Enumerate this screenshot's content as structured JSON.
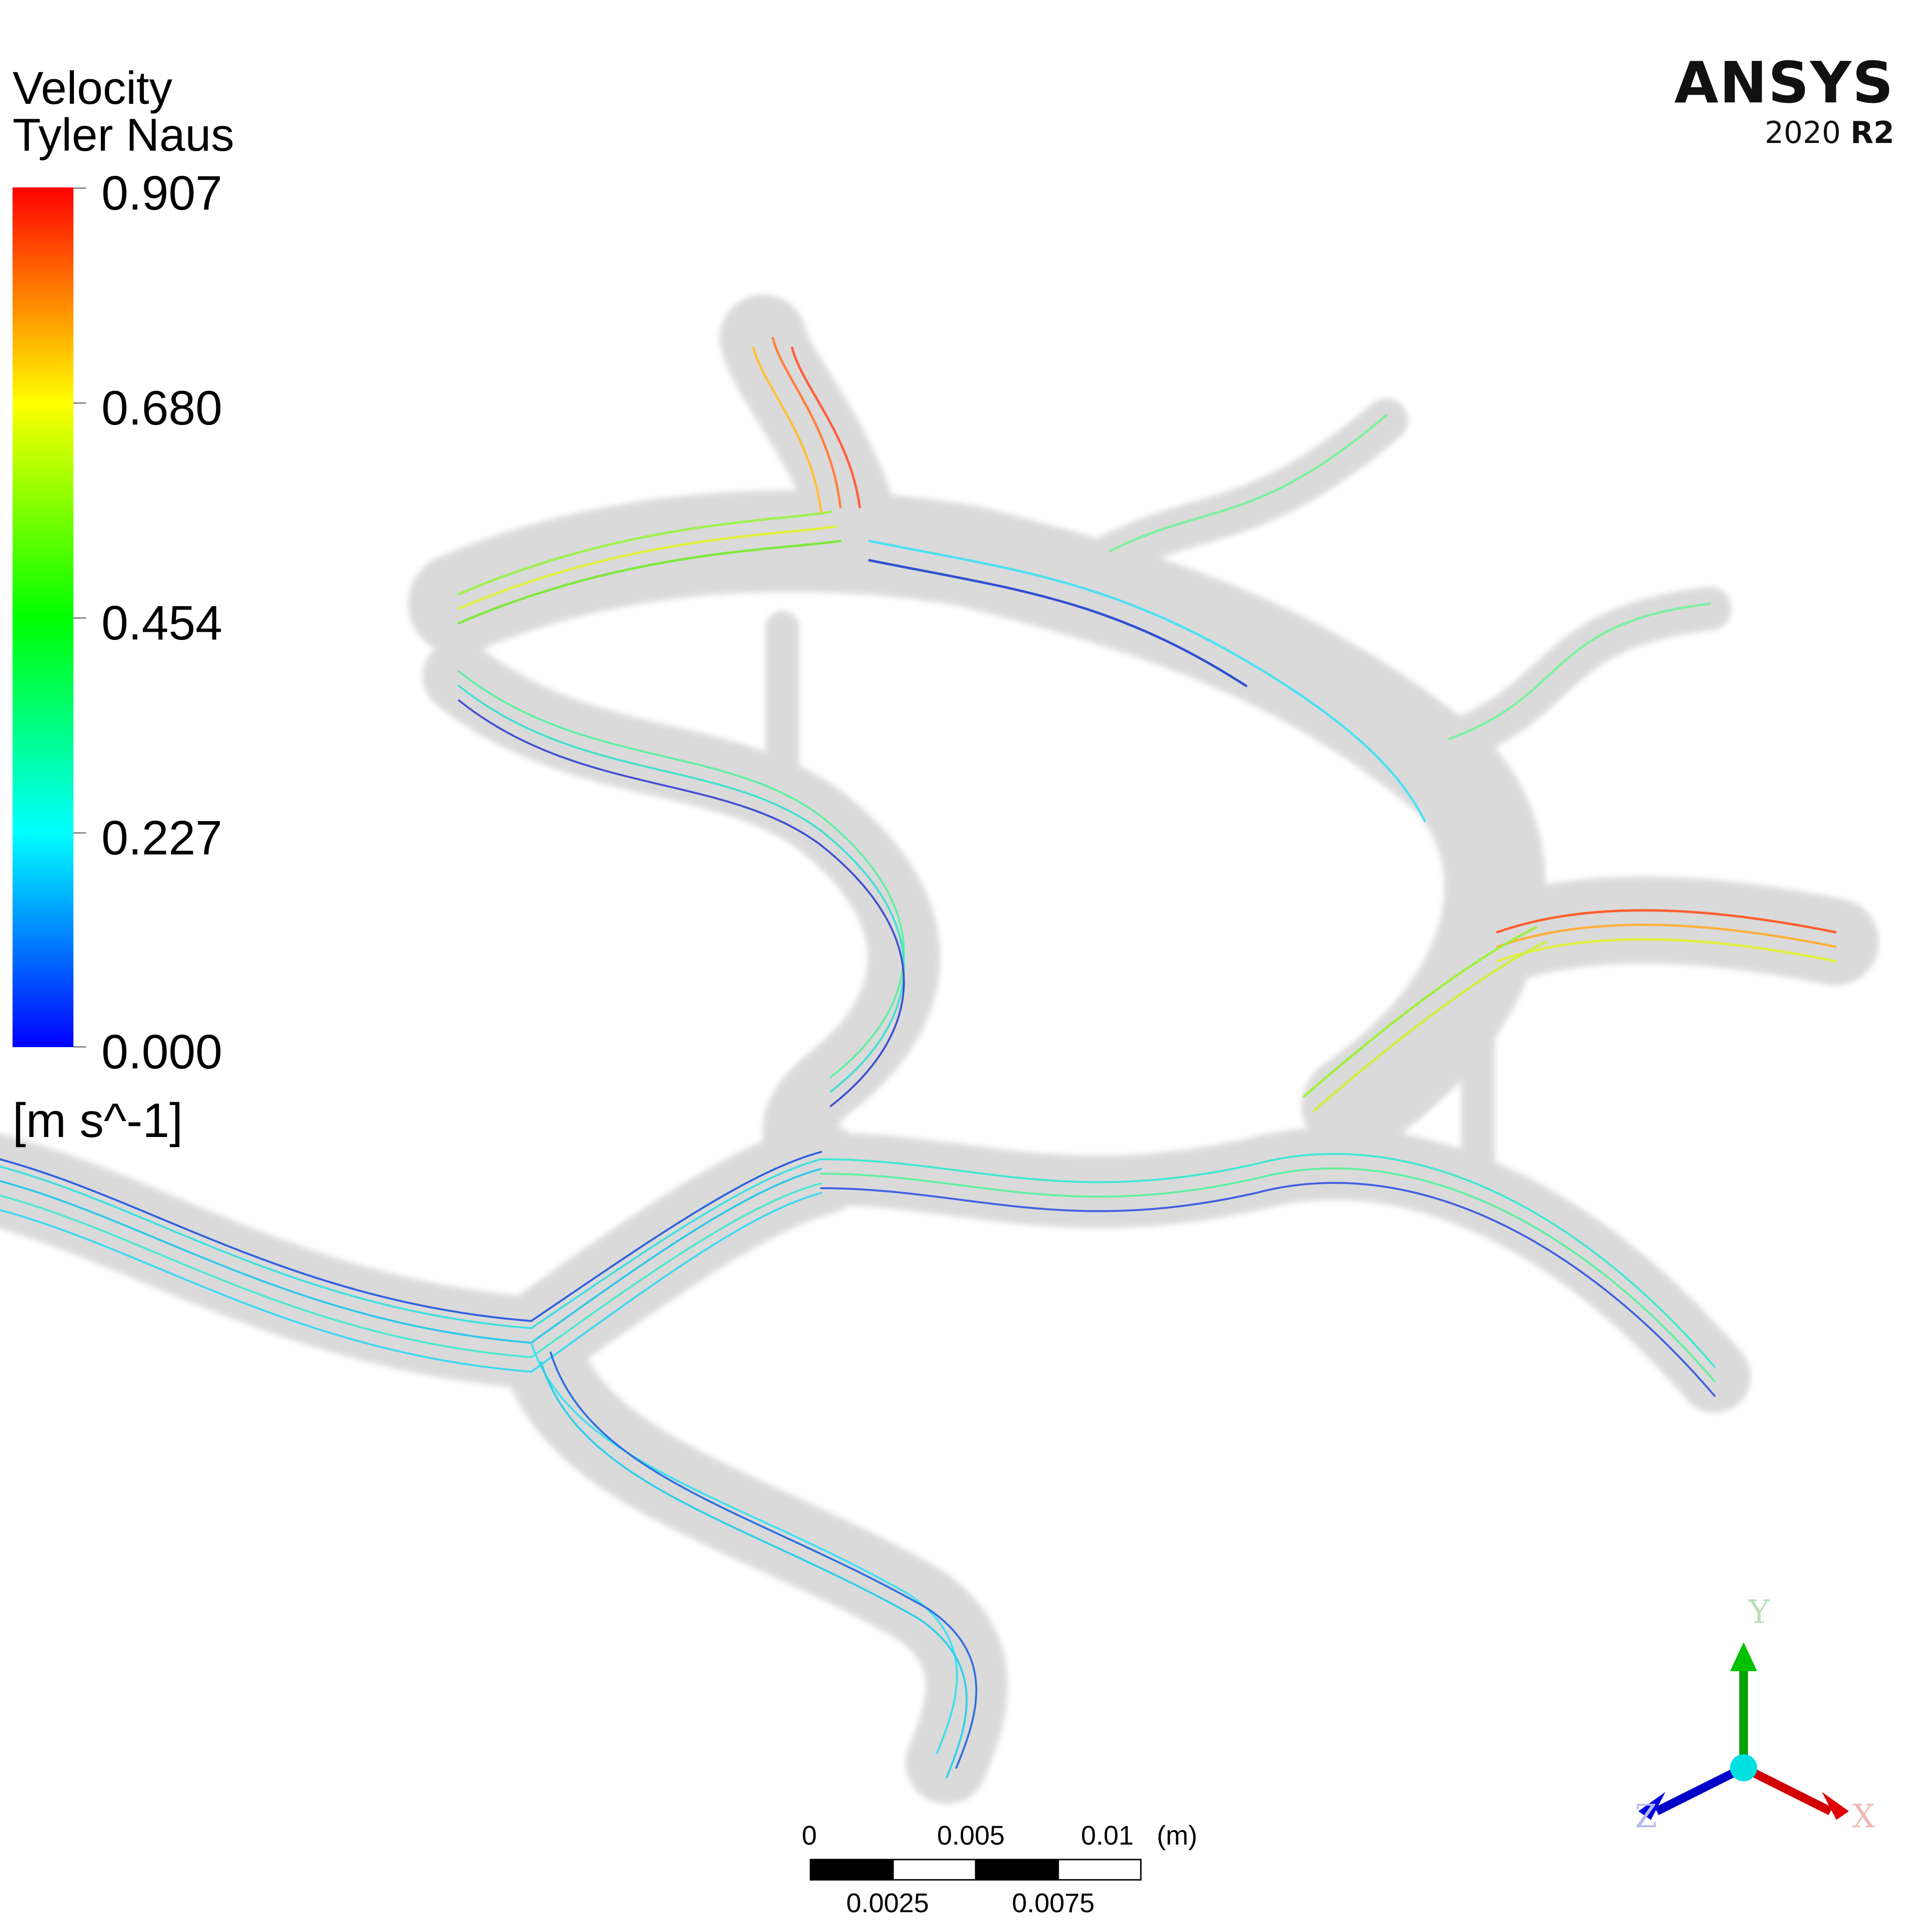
{
  "legend": {
    "variable": "Velocity",
    "subtitle": "Tyler Naus",
    "ticks": [
      "0.907",
      "0.680",
      "0.454",
      "0.227",
      "0.000"
    ],
    "units": "[m s^-1]",
    "range": [
      0.0,
      0.907
    ],
    "colors": [
      "#ff0000",
      "#ff8000",
      "#ffff00",
      "#80ff00",
      "#00ff00",
      "#00ff80",
      "#00ffff",
      "#0080ff",
      "#0000ff"
    ]
  },
  "logo": {
    "name": "ANSYS",
    "version_year": "2020",
    "version_release": "R2"
  },
  "scale_bar": {
    "top_labels": [
      "0",
      "0.005",
      "0.01"
    ],
    "unit": "(m)",
    "bottom_labels": [
      "0.0025",
      "0.0075"
    ]
  },
  "triad": {
    "axes": [
      {
        "letter": "Y",
        "color": "#00a000"
      },
      {
        "letter": "X",
        "color": "#e00000"
      },
      {
        "letter": "Z",
        "color": "#0000dd"
      }
    ]
  },
  "colors": {
    "vessel": "#d9d9d9",
    "background": "#ffffff"
  }
}
